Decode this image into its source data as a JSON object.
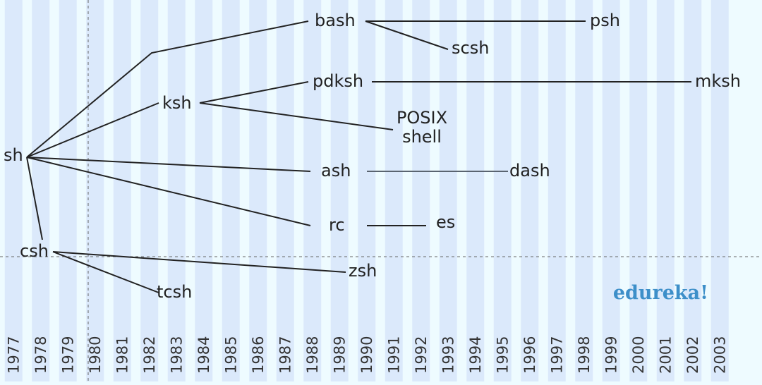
{
  "years": [
    "1977",
    "1978",
    "1979",
    "1980",
    "1981",
    "1982",
    "1983",
    "1984",
    "1985",
    "1986",
    "1987",
    "1988",
    "1989",
    "1990",
    "1991",
    "1992",
    "1993",
    "1994",
    "1995",
    "1996",
    "1997",
    "1998",
    "1999",
    "2000",
    "2001",
    "2002",
    "2003"
  ],
  "nodes": {
    "sh": "sh",
    "csh": "csh",
    "tcsh": "tcsh",
    "bash": "bash",
    "psh": "psh",
    "scsh": "scsh",
    "ksh": "ksh",
    "pdksh": "pdksh",
    "mksh": "mksh",
    "posix_line1": "POSIX",
    "posix_line2": "shell",
    "ash": "ash",
    "dash": "dash",
    "rc": "rc",
    "es": "es",
    "zsh": "zsh"
  },
  "brand": "edureka!",
  "colors": {
    "stripe": "#dbe9fb",
    "background": "#eefbff",
    "line": "#222222",
    "brand": "#3d8fc9"
  }
}
